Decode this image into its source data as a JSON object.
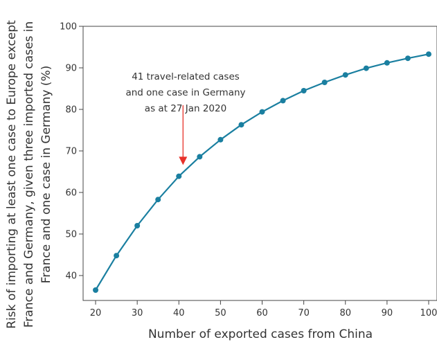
{
  "chart_data": {
    "type": "line",
    "title": "",
    "xlabel": "Number of exported cases from China",
    "ylabel_lines": [
      "Risk of importing at least one case to Europe except",
      "France and Germany, given three imported cases in",
      "France and one case in Germany (%)"
    ],
    "xlim": [
      17,
      102
    ],
    "ylim": [
      34,
      100
    ],
    "x_ticks": [
      20,
      30,
      40,
      50,
      60,
      70,
      80,
      90,
      100
    ],
    "y_ticks": [
      40,
      50,
      60,
      70,
      80,
      90,
      100
    ],
    "grid": false,
    "series": [
      {
        "color": "#1a7fa0",
        "x": [
          20,
          25,
          30,
          35,
          40,
          45,
          50,
          55,
          60,
          65,
          70,
          75,
          80,
          85,
          90,
          95,
          100
        ],
        "y": [
          36.5,
          44.8,
          52.0,
          58.3,
          63.9,
          68.6,
          72.7,
          76.3,
          79.4,
          82.1,
          84.5,
          86.5,
          88.3,
          89.9,
          91.2,
          92.3,
          93.3
        ]
      }
    ],
    "annotation": {
      "lines": [
        "41 travel-related cases",
        "and one case in Germany",
        "as at 27 Jan 2020"
      ],
      "arrow_x": 41,
      "arrow_y_from": 81,
      "arrow_y_to": 66.6,
      "arrow_color": "#e8312a"
    }
  }
}
